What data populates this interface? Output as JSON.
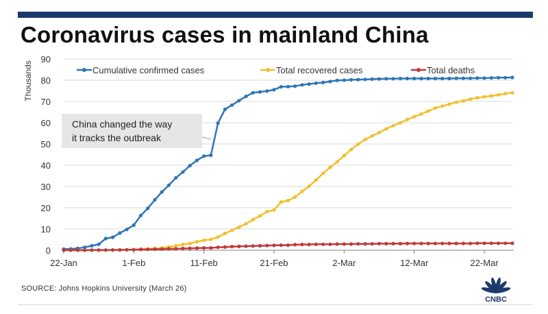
{
  "title": "Coronavirus cases in mainland China",
  "source": "SOURCE: Johns Hopkins University (March 26)",
  "logo_text": "CNBC",
  "chart_data": {
    "type": "line",
    "title": "Coronavirus cases in mainland China",
    "ylabel": "Thousands",
    "xlabel": "",
    "ylim": [
      0,
      90
    ],
    "yticks": [
      0,
      10,
      20,
      30,
      40,
      50,
      60,
      70,
      80,
      90
    ],
    "x_tick_labels": [
      "22-Jan",
      "1-Feb",
      "11-Feb",
      "21-Feb",
      "2-Mar",
      "12-Mar",
      "22-Mar"
    ],
    "x": [
      "22-Jan",
      "23-Jan",
      "24-Jan",
      "25-Jan",
      "26-Jan",
      "27-Jan",
      "28-Jan",
      "29-Jan",
      "30-Jan",
      "31-Jan",
      "1-Feb",
      "2-Feb",
      "3-Feb",
      "4-Feb",
      "5-Feb",
      "6-Feb",
      "7-Feb",
      "8-Feb",
      "9-Feb",
      "10-Feb",
      "11-Feb",
      "12-Feb",
      "13-Feb",
      "14-Feb",
      "15-Feb",
      "16-Feb",
      "17-Feb",
      "18-Feb",
      "19-Feb",
      "20-Feb",
      "21-Feb",
      "22-Feb",
      "23-Feb",
      "24-Feb",
      "25-Feb",
      "26-Feb",
      "27-Feb",
      "28-Feb",
      "29-Feb",
      "1-Mar",
      "2-Mar",
      "3-Mar",
      "4-Mar",
      "5-Mar",
      "6-Mar",
      "7-Mar",
      "8-Mar",
      "9-Mar",
      "10-Mar",
      "11-Mar",
      "12-Mar",
      "13-Mar",
      "14-Mar",
      "15-Mar",
      "16-Mar",
      "17-Mar",
      "18-Mar",
      "19-Mar",
      "20-Mar",
      "21-Mar",
      "22-Mar",
      "23-Mar",
      "24-Mar",
      "25-Mar",
      "26-Mar"
    ],
    "grid": true,
    "legend_position": "top",
    "series": [
      {
        "name": "Cumulative confirmed cases",
        "color": "#2e75b6",
        "values": [
          0.5,
          0.6,
          0.9,
          1.4,
          2.1,
          2.8,
          5.5,
          6.1,
          8.1,
          9.8,
          11.8,
          16.4,
          19.7,
          23.7,
          27.4,
          30.6,
          34.1,
          36.8,
          39.8,
          42.3,
          44.3,
          44.7,
          59.8,
          66.3,
          68.3,
          70.4,
          72.4,
          74.1,
          74.5,
          74.9,
          75.5,
          76.9,
          77.0,
          77.2,
          77.8,
          78.2,
          78.6,
          78.9,
          79.4,
          79.9,
          80.0,
          80.2,
          80.3,
          80.4,
          80.5,
          80.6,
          80.7,
          80.7,
          80.8,
          80.8,
          80.8,
          80.8,
          80.8,
          80.8,
          80.8,
          80.8,
          80.9,
          80.9,
          80.9,
          81.0,
          81.0,
          81.1,
          81.2,
          81.2,
          81.3
        ]
      },
      {
        "name": "Total recovered cases",
        "color": "#f0c030",
        "values": [
          0.0,
          0.0,
          0.0,
          0.0,
          0.1,
          0.1,
          0.1,
          0.1,
          0.1,
          0.2,
          0.3,
          0.5,
          0.6,
          0.9,
          1.1,
          1.5,
          2.1,
          2.7,
          3.2,
          4.0,
          4.7,
          5.1,
          6.2,
          7.9,
          9.4,
          10.8,
          12.5,
          14.4,
          16.2,
          18.2,
          18.9,
          22.7,
          23.4,
          25.0,
          27.7,
          30.1,
          33.1,
          36.2,
          39.0,
          41.6,
          44.5,
          47.4,
          49.9,
          52.1,
          53.8,
          55.4,
          57.1,
          58.6,
          59.9,
          61.5,
          62.8,
          64.1,
          65.5,
          66.9,
          67.8,
          68.7,
          69.6,
          70.3,
          71.1,
          71.7,
          72.2,
          72.6,
          73.1,
          73.7,
          74.1
        ]
      },
      {
        "name": "Total deaths",
        "color": "#c0393b",
        "values": [
          0.02,
          0.02,
          0.03,
          0.04,
          0.06,
          0.08,
          0.1,
          0.13,
          0.17,
          0.21,
          0.26,
          0.36,
          0.42,
          0.49,
          0.56,
          0.64,
          0.72,
          0.81,
          0.91,
          1.0,
          1.1,
          1.1,
          1.4,
          1.5,
          1.7,
          1.8,
          1.9,
          2.0,
          2.1,
          2.2,
          2.3,
          2.4,
          2.4,
          2.6,
          2.7,
          2.7,
          2.8,
          2.8,
          2.8,
          2.9,
          2.9,
          2.9,
          3.0,
          3.0,
          3.0,
          3.1,
          3.1,
          3.1,
          3.1,
          3.2,
          3.2,
          3.2,
          3.2,
          3.2,
          3.2,
          3.2,
          3.2,
          3.2,
          3.2,
          3.3,
          3.3,
          3.3,
          3.3,
          3.3,
          3.3
        ]
      }
    ],
    "annotation": {
      "line1": "China changed the way",
      "line2": "it tracks the outbreak",
      "target_date": "12-Feb"
    }
  }
}
